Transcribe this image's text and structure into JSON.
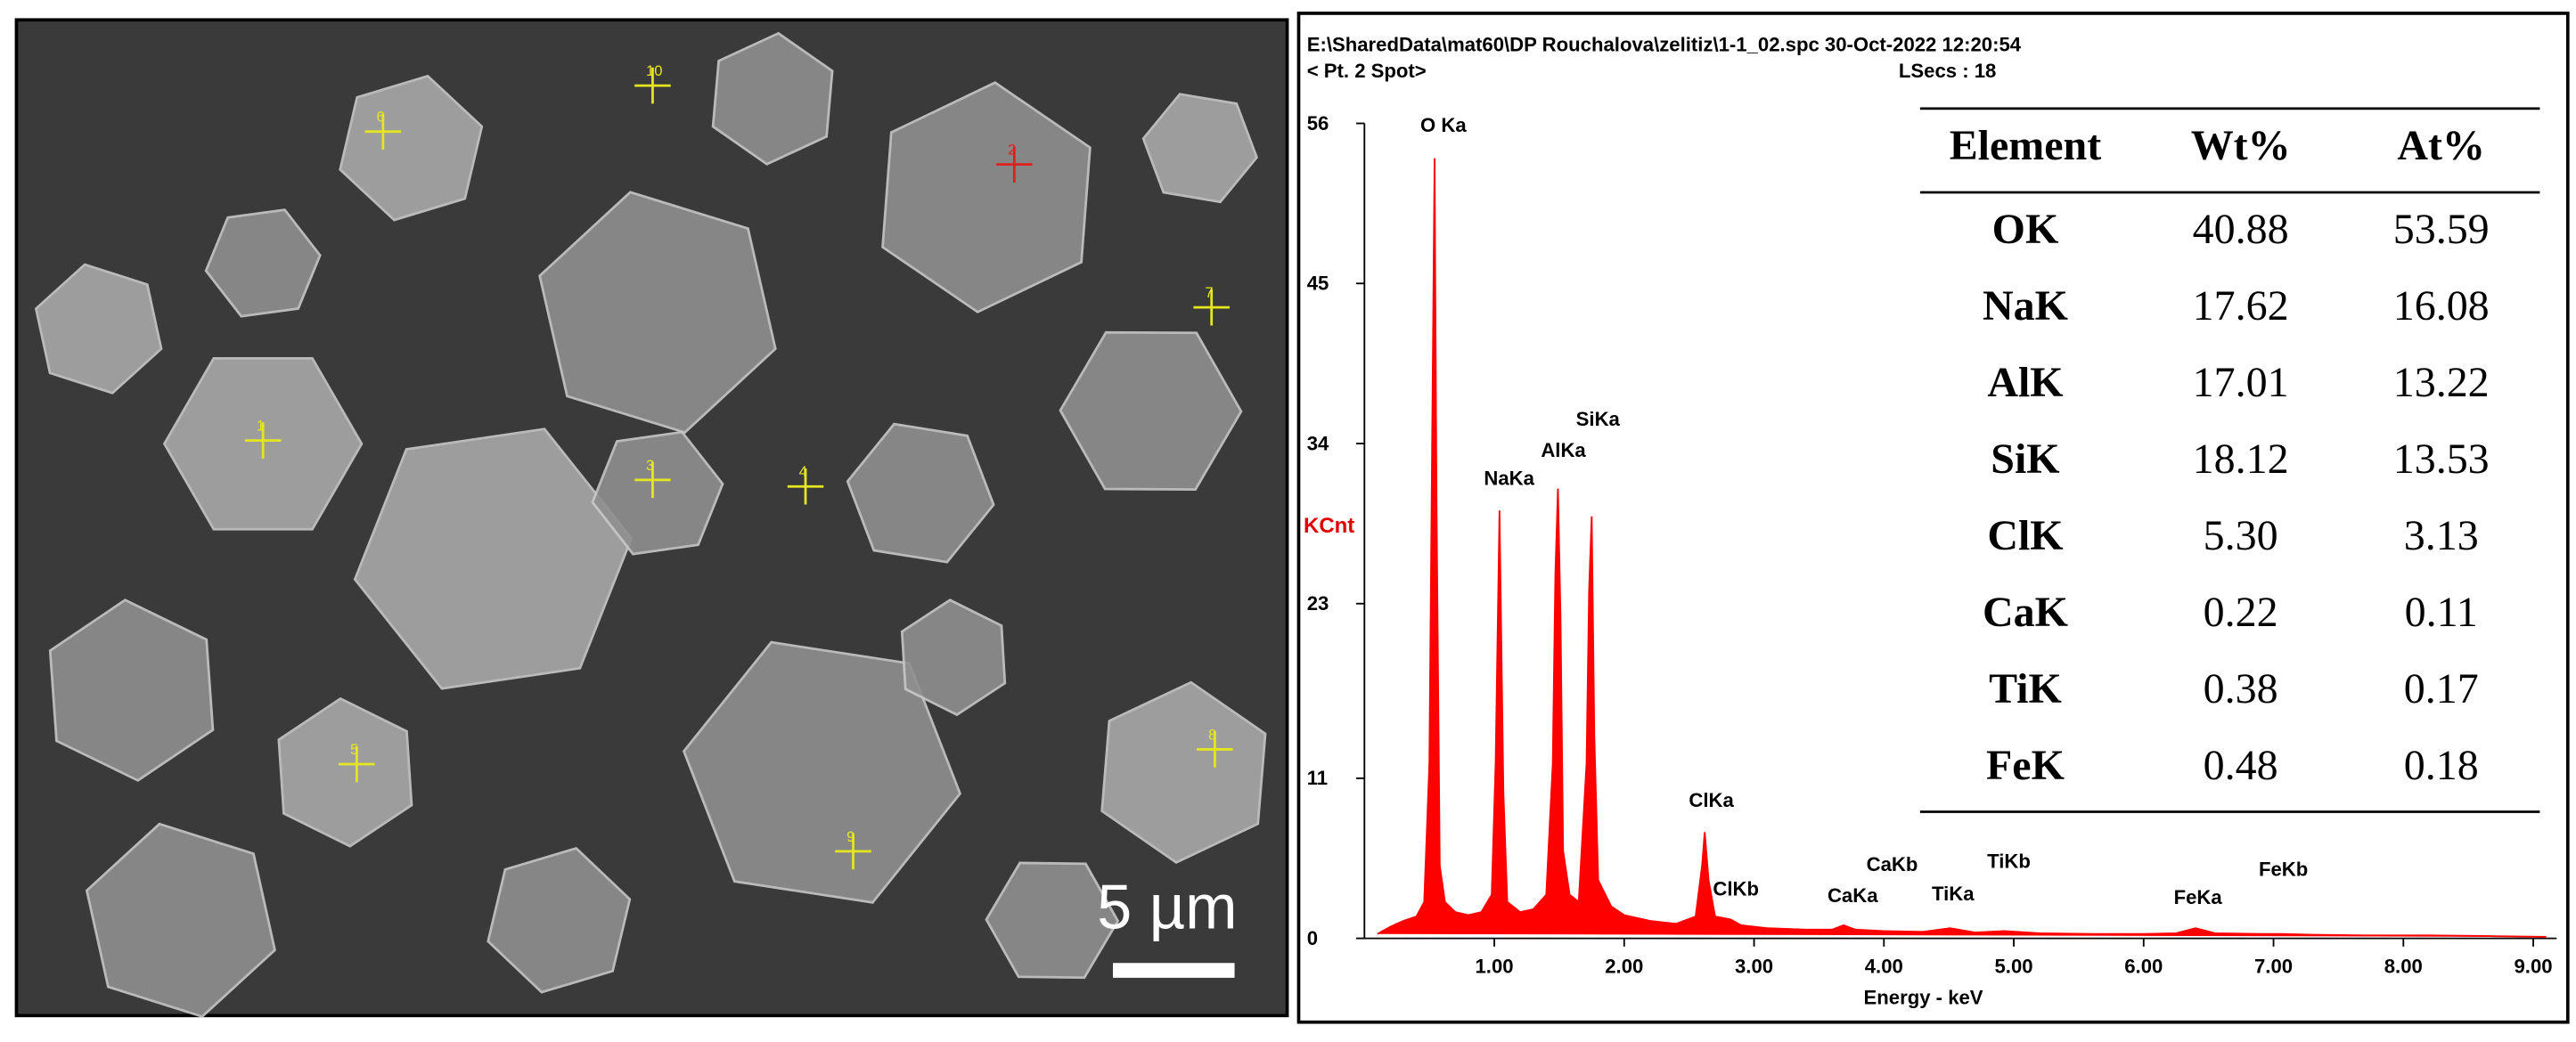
{
  "header": {
    "file": "E:\\SharedData\\mat60\\DP Rouchalova\\zelitiz\\1-1_02.spc  30-Oct-2022 12:20:54",
    "point": "< Pt. 2 Spot>",
    "lsecs": "LSecs : 18"
  },
  "sem": {
    "scale_bar": "5 µm",
    "points": [
      "10",
      "6",
      "2",
      "7",
      "1",
      "3",
      "4",
      "8",
      "5",
      "9"
    ]
  },
  "chart_data": {
    "type": "area",
    "color": "#ff0000",
    "ylabel": "KCnt",
    "xlabel": "Energy - keV",
    "xlim": [
      0,
      9.18
    ],
    "ylim": [
      0,
      56
    ],
    "xticks": [
      {
        "value": 1,
        "label": "1.00"
      },
      {
        "value": 2,
        "label": "2.00"
      },
      {
        "value": 3,
        "label": "3.00"
      },
      {
        "value": 4,
        "label": "4.00"
      },
      {
        "value": 5,
        "label": "5.00"
      },
      {
        "value": 6,
        "label": "6.00"
      },
      {
        "value": 7,
        "label": "7.00"
      },
      {
        "value": 8,
        "label": "8.00"
      },
      {
        "value": 9,
        "label": "9.00"
      }
    ],
    "yticks": [
      0,
      11,
      23,
      34,
      45,
      56
    ],
    "annotations": [
      "O Ka",
      "NaKa",
      "AlKa",
      "SiKa",
      "ClKa",
      "ClKb",
      "CaKa",
      "CaKb",
      "TiKa",
      "TiKb",
      "FeKa",
      "FeKb"
    ],
    "x": [
      0.1,
      0.2,
      0.3,
      0.4,
      0.46,
      0.5,
      0.525,
      0.54,
      0.555,
      0.58,
      0.62,
      0.7,
      0.8,
      0.9,
      0.98,
      1.01,
      1.04,
      1.07,
      1.1,
      1.2,
      1.3,
      1.4,
      1.45,
      1.47,
      1.49,
      1.51,
      1.53,
      1.58,
      1.65,
      1.71,
      1.73,
      1.75,
      1.77,
      1.8,
      1.9,
      2.0,
      2.2,
      2.4,
      2.55,
      2.6,
      2.62,
      2.65,
      2.7,
      2.82,
      2.9,
      3.1,
      3.4,
      3.6,
      3.69,
      3.78,
      4.0,
      4.3,
      4.51,
      4.7,
      4.93,
      5.2,
      5.6,
      6.0,
      6.25,
      6.4,
      6.55,
      6.9,
      7.06,
      7.3,
      7.7,
      8.2,
      8.7,
      9.1
    ],
    "values": [
      0.3,
      0.8,
      1.2,
      1.5,
      2.5,
      12,
      38,
      53.6,
      30,
      5,
      2.5,
      1.8,
      1.6,
      1.8,
      3,
      12,
      29.4,
      10,
      2.5,
      1.8,
      2.0,
      3,
      12,
      25,
      30.9,
      22,
      6,
      3,
      2.5,
      12,
      24,
      29.0,
      14,
      4,
      2.2,
      1.6,
      1.2,
      1.0,
      1.5,
      5,
      7.3,
      4,
      1.5,
      1.3,
      0.9,
      0.7,
      0.6,
      0.6,
      0.9,
      0.6,
      0.5,
      0.45,
      0.7,
      0.4,
      0.5,
      0.35,
      0.3,
      0.3,
      0.35,
      0.7,
      0.35,
      0.3,
      0.3,
      0.25,
      0.2,
      0.2,
      0.15,
      0.1
    ]
  },
  "table": {
    "columns": [
      "Element",
      "Wt%",
      "At%"
    ],
    "rows": [
      [
        "OK",
        "40.88",
        "53.59"
      ],
      [
        "NaK",
        "17.62",
        "16.08"
      ],
      [
        "AlK",
        "17.01",
        "13.22"
      ],
      [
        "SiK",
        "18.12",
        "13.53"
      ],
      [
        "ClK",
        "5.30",
        "3.13"
      ],
      [
        "CaK",
        "0.22",
        "0.11"
      ],
      [
        "TiK",
        "0.38",
        "0.17"
      ],
      [
        "FeK",
        "0.48",
        "0.18"
      ]
    ]
  }
}
